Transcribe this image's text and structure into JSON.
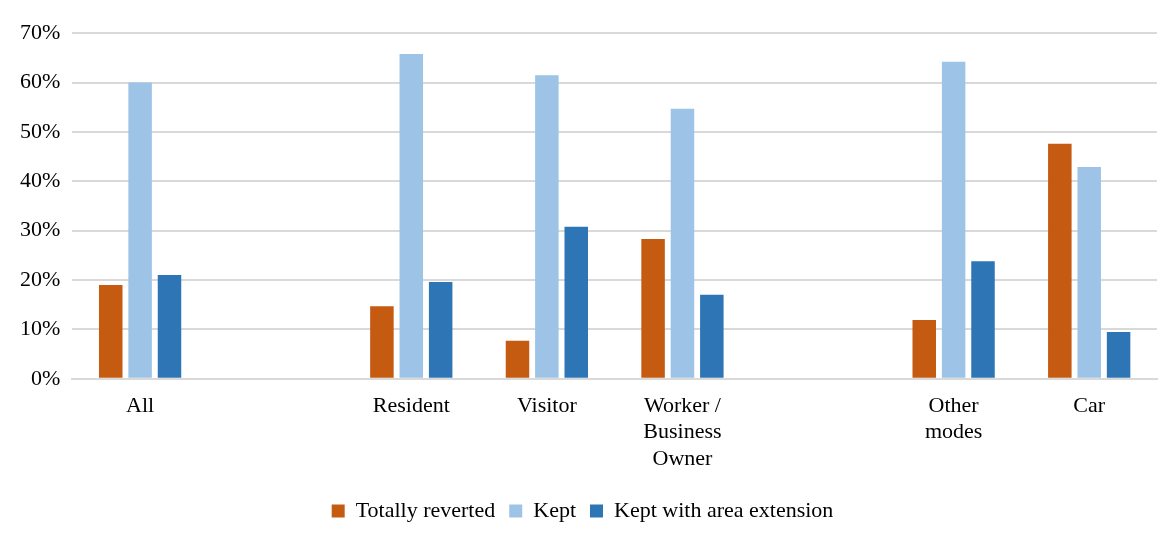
{
  "chart_data": {
    "type": "bar",
    "categories": [
      "All",
      null,
      "Resident",
      "Visitor",
      "Worker / Business Owner",
      null,
      "Other modes",
      "Car"
    ],
    "series": [
      {
        "name": "Totally reverted",
        "color": "#c55a11",
        "values": [
          19.0,
          null,
          14.7,
          7.7,
          28.3,
          null,
          11.9,
          47.6
        ]
      },
      {
        "name": "Kept",
        "color": "#9dc3e6",
        "values": [
          60.0,
          null,
          65.8,
          61.5,
          54.7,
          null,
          64.2,
          42.9
        ]
      },
      {
        "name": "Kept with area extension",
        "color": "#2e75b6",
        "values": [
          21.0,
          null,
          19.6,
          30.8,
          17.0,
          null,
          23.8,
          9.5
        ]
      }
    ],
    "ylim": [
      0,
      70
    ],
    "yticks": [
      {
        "value": 0,
        "label": "0%"
      },
      {
        "value": 10,
        "label": "10%"
      },
      {
        "value": 20,
        "label": "20%"
      },
      {
        "value": 30,
        "label": "30%"
      },
      {
        "value": 40,
        "label": "40%"
      },
      {
        "value": 50,
        "label": "50%"
      },
      {
        "value": 60,
        "label": "60%"
      },
      {
        "value": 70,
        "label": "70%"
      }
    ],
    "grid": "y",
    "legend": "bottom"
  }
}
